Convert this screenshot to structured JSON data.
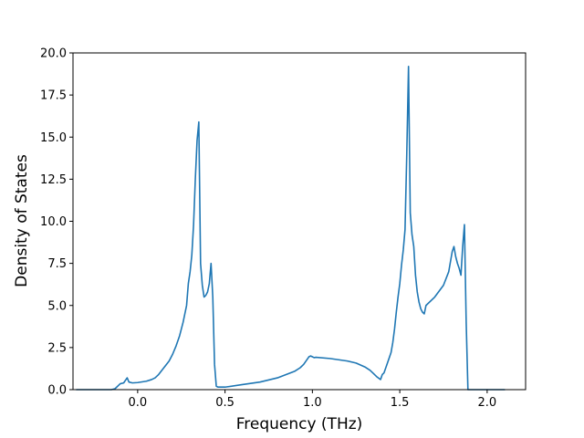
{
  "chart_data": {
    "type": "line",
    "title": "",
    "xlabel": "Frequency (THz)",
    "ylabel": "Density of States",
    "xlim": [
      -0.37,
      2.22
    ],
    "ylim": [
      0,
      20
    ],
    "xticks": [
      {
        "value": 0.0,
        "label": "0.0"
      },
      {
        "value": 0.5,
        "label": "0.5"
      },
      {
        "value": 1.0,
        "label": "1.0"
      },
      {
        "value": 1.5,
        "label": "1.5"
      },
      {
        "value": 2.0,
        "label": "2.0"
      }
    ],
    "yticks": [
      {
        "value": 0.0,
        "label": "0.0"
      },
      {
        "value": 2.5,
        "label": "2.5"
      },
      {
        "value": 5.0,
        "label": "5.0"
      },
      {
        "value": 7.5,
        "label": "7.5"
      },
      {
        "value": 10.0,
        "label": "10.0"
      },
      {
        "value": 12.5,
        "label": "12.5"
      },
      {
        "value": 15.0,
        "label": "15.0"
      },
      {
        "value": 17.5,
        "label": "17.5"
      },
      {
        "value": 20.0,
        "label": "20.0"
      }
    ],
    "grid": false,
    "legend": "none",
    "series": [
      {
        "color": "#1f77b4",
        "x": [
          -0.35,
          -0.15,
          -0.13,
          -0.1,
          -0.08,
          -0.07,
          -0.06,
          -0.05,
          -0.03,
          0.0,
          0.05,
          0.08,
          0.1,
          0.12,
          0.15,
          0.18,
          0.2,
          0.22,
          0.24,
          0.26,
          0.28,
          0.29,
          0.3,
          0.31,
          0.32,
          0.33,
          0.34,
          0.35,
          0.36,
          0.37,
          0.38,
          0.39,
          0.4,
          0.41,
          0.42,
          0.43,
          0.44,
          0.45,
          0.46,
          0.47,
          0.48,
          0.5,
          0.6,
          0.7,
          0.8,
          0.9,
          0.93,
          0.95,
          0.97,
          0.98,
          0.99,
          1.0,
          1.01,
          1.02,
          1.1,
          1.2,
          1.25,
          1.3,
          1.33,
          1.35,
          1.37,
          1.39,
          1.4,
          1.41,
          1.42,
          1.43,
          1.44,
          1.45,
          1.46,
          1.47,
          1.48,
          1.49,
          1.5,
          1.51,
          1.52,
          1.53,
          1.54,
          1.55,
          1.56,
          1.57,
          1.58,
          1.59,
          1.6,
          1.61,
          1.62,
          1.63,
          1.64,
          1.65,
          1.7,
          1.75,
          1.78,
          1.8,
          1.81,
          1.82,
          1.83,
          1.84,
          1.85,
          1.86,
          1.87,
          1.88,
          1.89,
          1.9,
          1.91,
          1.95,
          2.0,
          2.1
        ],
        "y": [
          0.0,
          0.0,
          0.05,
          0.35,
          0.4,
          0.55,
          0.7,
          0.45,
          0.4,
          0.42,
          0.5,
          0.6,
          0.7,
          0.9,
          1.3,
          1.7,
          2.1,
          2.6,
          3.2,
          4.0,
          5.0,
          6.3,
          7.0,
          8.0,
          9.8,
          12.5,
          14.8,
          15.9,
          7.5,
          6.2,
          5.5,
          5.6,
          5.8,
          6.3,
          7.5,
          5.5,
          1.5,
          0.2,
          0.15,
          0.15,
          0.15,
          0.15,
          0.3,
          0.45,
          0.7,
          1.1,
          1.3,
          1.5,
          1.8,
          1.95,
          2.0,
          1.95,
          1.9,
          1.92,
          1.85,
          1.7,
          1.58,
          1.35,
          1.15,
          0.95,
          0.75,
          0.6,
          0.9,
          1.0,
          1.3,
          1.6,
          1.9,
          2.2,
          2.8,
          3.6,
          4.6,
          5.5,
          6.3,
          7.4,
          8.3,
          9.5,
          14.0,
          19.2,
          10.5,
          9.2,
          8.5,
          6.8,
          5.8,
          5.2,
          4.8,
          4.6,
          4.5,
          5.0,
          5.5,
          6.2,
          7.0,
          8.2,
          8.5,
          7.9,
          7.5,
          7.2,
          6.8,
          8.5,
          9.8,
          4.0,
          0.0,
          0.0,
          0.0,
          0.0,
          0.0,
          0.0
        ]
      }
    ]
  }
}
